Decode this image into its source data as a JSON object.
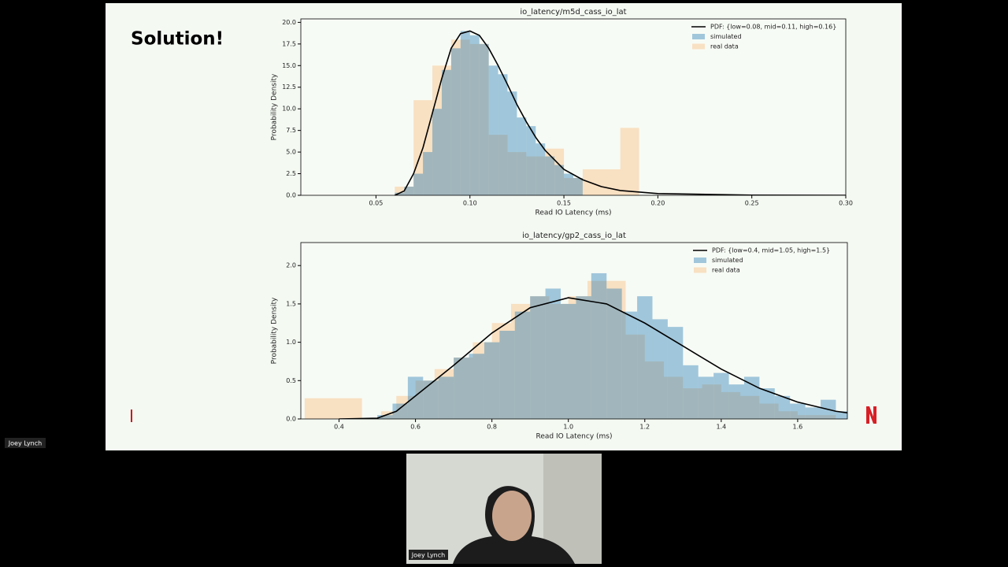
{
  "slide": {
    "title": "Solution!"
  },
  "participants": [
    {
      "name": "Joey Lynch"
    },
    {
      "name": "Joey Lynch"
    }
  ],
  "chart_data": [
    {
      "type": "histogram",
      "title": "io_latency/m5d_cass_io_lat",
      "xlabel": "Read IO Latency (ms)",
      "ylabel": "Probability Density",
      "xlim": [
        0.01,
        0.3
      ],
      "ylim": [
        0,
        20.4
      ],
      "xticks": [
        {
          "value": 0.05,
          "label": "0.05"
        },
        {
          "value": 0.1,
          "label": "0.10"
        },
        {
          "value": 0.15,
          "label": "0.15"
        },
        {
          "value": 0.2,
          "label": "0.20"
        },
        {
          "value": 0.25,
          "label": "0.25"
        },
        {
          "value": 0.3,
          "label": "0.30"
        }
      ],
      "yticks": [
        {
          "value": 0,
          "label": "0.0"
        },
        2.5,
        {
          "value": 5,
          "label": "5.0"
        },
        7.5,
        {
          "value": 10,
          "label": "10.0"
        },
        12.5,
        {
          "value": 15,
          "label": "15.0"
        },
        17.5,
        {
          "value": 20,
          "label": "20.0"
        }
      ],
      "legend": "upper right",
      "series": [
        {
          "name": "PDF: {low=0.08, mid=0.11, high=0.16}",
          "type": "line",
          "color": "#000000",
          "x": [
            0.06,
            0.065,
            0.07,
            0.075,
            0.08,
            0.085,
            0.09,
            0.095,
            0.1,
            0.105,
            0.11,
            0.115,
            0.12,
            0.125,
            0.13,
            0.135,
            0.14,
            0.15,
            0.16,
            0.17,
            0.18,
            0.2,
            0.25,
            0.3
          ],
          "values": [
            0,
            0.5,
            2.5,
            5.5,
            9.5,
            13.5,
            17,
            18.7,
            19,
            18.5,
            17,
            15,
            12.8,
            10.5,
            8.5,
            6.7,
            5.2,
            3,
            1.8,
            1,
            0.55,
            0.2,
            0.02,
            0
          ]
        },
        {
          "name": "simulated",
          "color": "#1f77b4",
          "opacity": 0.4,
          "bins": [
            0.06,
            0.065,
            0.07,
            0.075,
            0.08,
            0.085,
            0.09,
            0.095,
            0.1,
            0.105,
            0.11,
            0.115,
            0.12,
            0.125,
            0.13,
            0.135,
            0.14,
            0.145,
            0.15,
            0.155,
            0.16
          ],
          "values": [
            0.3,
            1,
            2.5,
            5,
            10,
            14.5,
            17,
            19,
            18.5,
            17.5,
            15,
            14,
            12,
            9,
            8,
            6,
            4.5,
            3.5,
            2.5,
            2
          ]
        },
        {
          "name": "real data",
          "color": "#ff7f0e",
          "opacity": 0.22,
          "bins": [
            0.06,
            0.07,
            0.08,
            0.09,
            0.1,
            0.11,
            0.12,
            0.13,
            0.14,
            0.15,
            0.16,
            0.17,
            0.18,
            0.19
          ],
          "values": [
            1,
            11,
            15,
            18,
            17.5,
            7,
            5,
            4.5,
            5.4,
            2,
            3,
            3,
            7.8
          ]
        }
      ]
    },
    {
      "type": "histogram",
      "title": "io_latency/gp2_cass_io_lat",
      "xlabel": "Read IO Latency (ms)",
      "ylabel": "Probability Density",
      "xlim": [
        0.3,
        1.73
      ],
      "ylim": [
        0,
        2.3
      ],
      "xticks": [
        0.4,
        0.6,
        0.8,
        {
          "value": 1,
          "label": "1.0"
        },
        1.2,
        1.4,
        1.6
      ],
      "yticks": [
        {
          "value": 0,
          "label": "0.0"
        },
        0.5,
        {
          "value": 1,
          "label": "1.0"
        },
        1.5,
        {
          "value": 2,
          "label": "2.0"
        }
      ],
      "legend": "upper right",
      "series": [
        {
          "name": "PDF: {low=0.4, mid=1.05, high=1.5}",
          "type": "line",
          "color": "#000000",
          "x": [
            0.4,
            0.5,
            0.55,
            0.6,
            0.7,
            0.8,
            0.9,
            1.0,
            1.1,
            1.2,
            1.3,
            1.4,
            1.5,
            1.6,
            1.7,
            1.73
          ],
          "values": [
            0,
            0.01,
            0.1,
            0.3,
            0.7,
            1.12,
            1.45,
            1.58,
            1.5,
            1.25,
            0.95,
            0.65,
            0.4,
            0.22,
            0.1,
            0.08
          ]
        },
        {
          "name": "simulated",
          "color": "#1f77b4",
          "opacity": 0.4,
          "bins": [
            0.5,
            0.54,
            0.58,
            0.62,
            0.66,
            0.7,
            0.74,
            0.78,
            0.82,
            0.86,
            0.9,
            0.94,
            0.98,
            1.02,
            1.06,
            1.1,
            1.14,
            1.18,
            1.22,
            1.26,
            1.3,
            1.34,
            1.38,
            1.42,
            1.46,
            1.5,
            1.54,
            1.58,
            1.62,
            1.66,
            1.7,
            1.74
          ],
          "values": [
            0.05,
            0.2,
            0.55,
            0.5,
            0.55,
            0.8,
            0.85,
            1,
            1.15,
            1.4,
            1.6,
            1.7,
            1.5,
            1.6,
            1.9,
            1.7,
            1.4,
            1.6,
            1.3,
            1.2,
            0.7,
            0.55,
            0.6,
            0.45,
            0.55,
            0.4,
            0.3,
            0.2,
            0.15,
            0.25,
            0.1
          ]
        },
        {
          "name": "real data",
          "color": "#ff7f0e",
          "opacity": 0.22,
          "bins": [
            0.31,
            0.46,
            0.51,
            0.55,
            0.6,
            0.65,
            0.7,
            0.75,
            0.8,
            0.85,
            0.9,
            0.95,
            1.0,
            1.05,
            1.1,
            1.15,
            1.2,
            1.25,
            1.3,
            1.35,
            1.4,
            1.45,
            1.5,
            1.55,
            1.6,
            1.65,
            1.7
          ],
          "values": [
            0.27,
            0,
            0.1,
            0.3,
            0.5,
            0.65,
            0.8,
            1,
            1.25,
            1.5,
            1.6,
            1.5,
            1.6,
            1.8,
            1.8,
            1.1,
            0.75,
            0.55,
            0.4,
            0.45,
            0.35,
            0.3,
            0.2,
            0.1,
            0.05,
            0.05
          ]
        }
      ]
    }
  ]
}
